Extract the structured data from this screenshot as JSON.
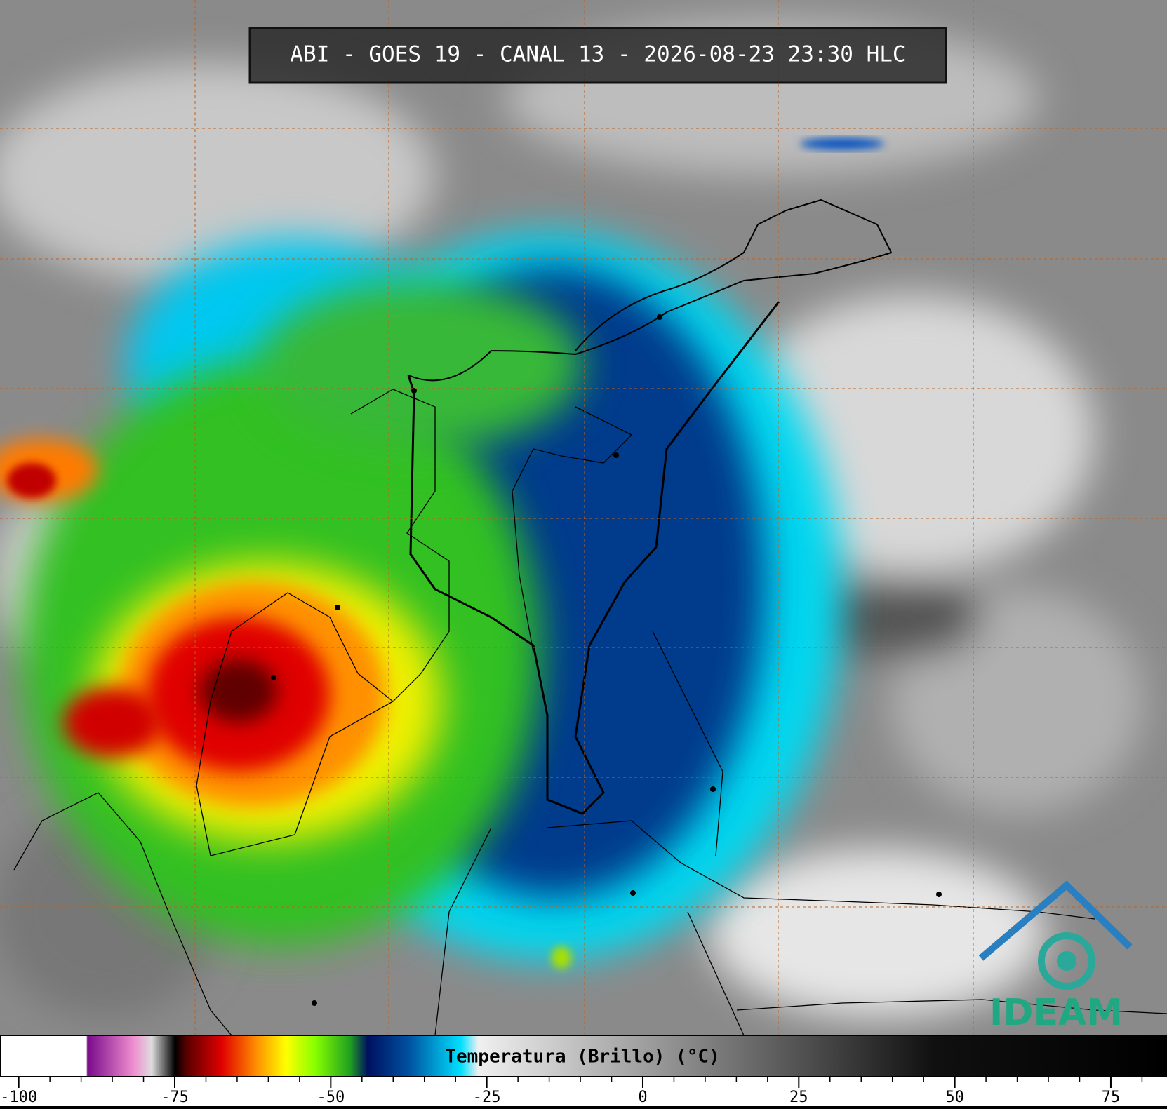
{
  "header": {
    "title": "ABI - GOES 19 - CANAL 13 - 2026-08-23 23:30 HLC"
  },
  "colorbar": {
    "label": "Temperatura (Brillo) (°C)",
    "lim": [
      -103,
      84
    ],
    "ticks": [
      -100,
      -75,
      -50,
      -25,
      0,
      25,
      50,
      75
    ]
  },
  "logo": {
    "text": "IDEAM"
  }
}
